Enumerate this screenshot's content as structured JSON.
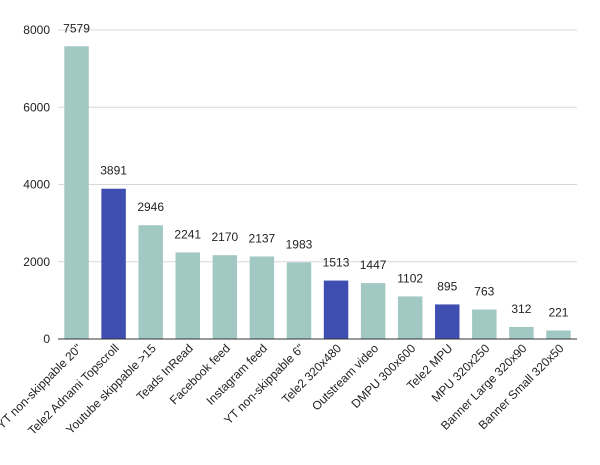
{
  "chart_data": {
    "type": "bar",
    "title": "",
    "xlabel": "",
    "ylabel": "",
    "ylim": [
      0,
      8000
    ],
    "yticks": [
      0,
      2000,
      4000,
      6000,
      8000
    ],
    "grid": true,
    "legend": "none",
    "categories": [
      "YT non-skippable 20\"",
      "Tele2 Adnami Topscroll",
      "Youtube skippable >15",
      "Teads InRead",
      "Facebook feed",
      "Instagram feed",
      "YT non-skippable 6\"",
      "Tele2 320x480",
      "Outstream video",
      "DMPU 300x600",
      "Tele2 MPU",
      "MPU 320x250",
      "Banner Large 320x90",
      "Banner Small 320x50"
    ],
    "values": [
      7579,
      3891,
      2946,
      2241,
      2170,
      2137,
      1983,
      1513,
      1447,
      1102,
      895,
      763,
      312,
      221
    ],
    "bar_colors": [
      "#a2c8c4",
      "#3f4fb1",
      "#a2c8c4",
      "#a2c8c4",
      "#a2c8c4",
      "#a2c8c4",
      "#a2c8c4",
      "#3f4fb1",
      "#a2c8c4",
      "#a2c8c4",
      "#3f4fb1",
      "#a2c8c4",
      "#a2c8c4",
      "#a2c8c4"
    ]
  }
}
